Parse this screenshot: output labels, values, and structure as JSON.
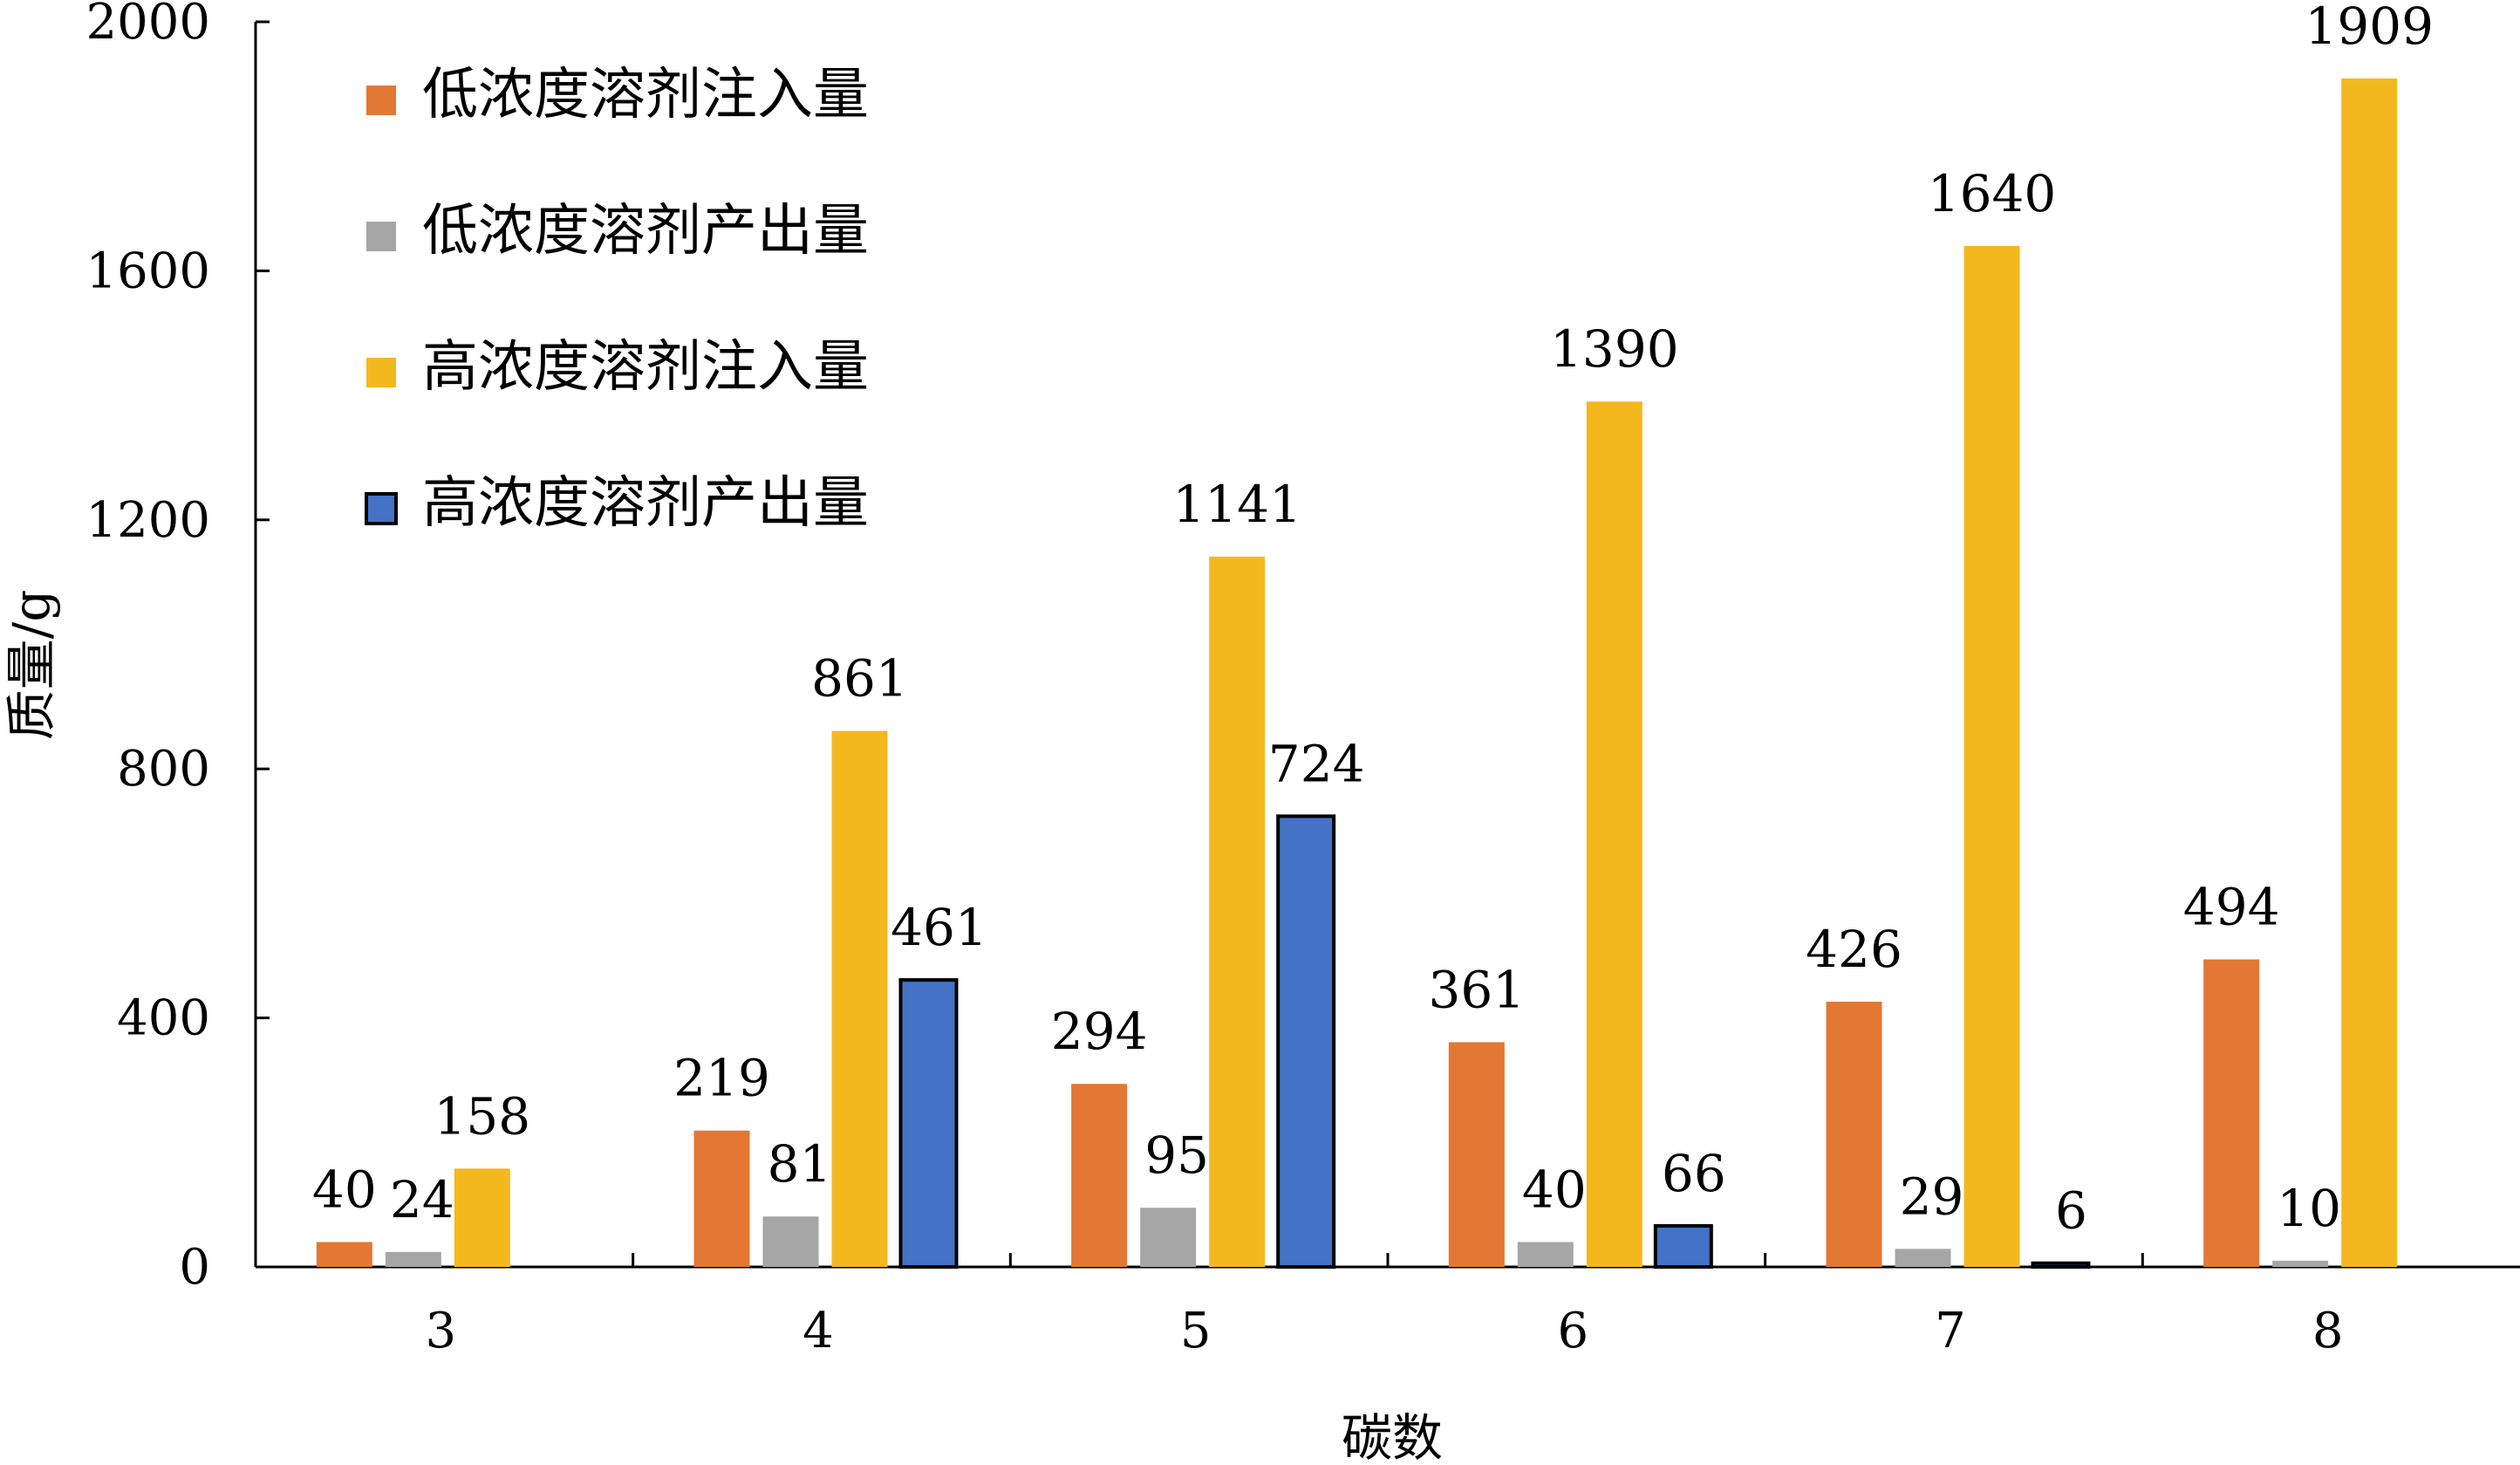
{
  "chart_data": {
    "type": "bar",
    "title": "",
    "xlabel": "碳数",
    "ylabel": "质量/g",
    "ylim": [
      0,
      2000
    ],
    "yticks": [
      0,
      400,
      800,
      1200,
      1600,
      2000
    ],
    "grid": false,
    "legend_position": "top-left",
    "categories": [
      "3",
      "4",
      "5",
      "6",
      "7",
      "8"
    ],
    "series": [
      {
        "name": "低浓度溶剂注入量",
        "color": "#E27833",
        "values": [
          40,
          219,
          294,
          361,
          426,
          494
        ],
        "labels": [
          "40",
          "219",
          "294",
          "361",
          "426",
          "494"
        ]
      },
      {
        "name": "低浓度溶剂产出量",
        "color": "#A6A6A6",
        "values": [
          24,
          81,
          95,
          40,
          29,
          10
        ],
        "labels": [
          "24",
          "81",
          "95",
          "40",
          "29",
          "10"
        ]
      },
      {
        "name": "高浓度溶剂注入量",
        "color": "#F4B81F",
        "values": [
          158,
          861,
          1141,
          1390,
          1640,
          1909
        ],
        "labels": [
          "158",
          "861",
          "1141",
          "1390",
          "1640",
          "1909"
        ]
      },
      {
        "name": "高浓度溶剂产出量",
        "color": "#4472C4",
        "values": [
          0,
          461,
          724,
          66,
          6,
          0
        ],
        "labels": [
          "",
          "461",
          "724",
          "66",
          "6",
          ""
        ]
      }
    ]
  }
}
